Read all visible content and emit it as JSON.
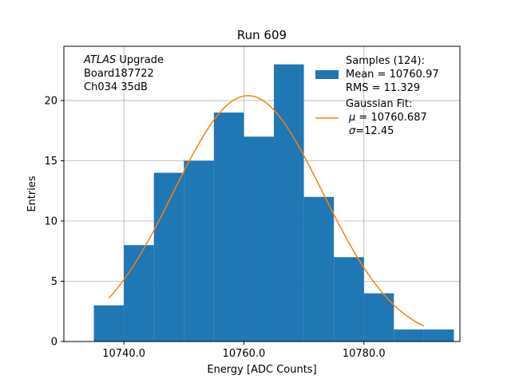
{
  "chart_data": {
    "type": "bar",
    "title": "Run 609",
    "xlabel": "Energy [ADC Counts]",
    "ylabel": "Entries",
    "xlim": [
      10730,
      10796
    ],
    "ylim": [
      0,
      24.5
    ],
    "grid": true,
    "legend_position": "top-right",
    "x_ticks": [
      10740,
      10760,
      10780
    ],
    "x_tick_labels": [
      "10740.0",
      "10760.0",
      "10780.0"
    ],
    "y_ticks": [
      0,
      5,
      10,
      15,
      20
    ],
    "y_tick_labels": [
      "0",
      "5",
      "10",
      "15",
      "20"
    ],
    "histogram": {
      "name": "Samples (124):",
      "color": "#1f77b4",
      "bin_edges": [
        10735,
        10740,
        10745,
        10750,
        10755,
        10760,
        10765,
        10770,
        10775,
        10780,
        10785,
        10790,
        10795
      ],
      "counts": [
        3,
        8,
        14,
        15,
        19,
        17,
        23,
        12,
        7,
        4,
        1,
        1
      ]
    },
    "gaussian_fit": {
      "name": "Gaussian Fit:",
      "color": "#ff7f0e",
      "amplitude": 20.4,
      "mu": 10760.687,
      "sigma": 12.45,
      "x_range": [
        10737.5,
        10790.0
      ]
    },
    "legend": {
      "samples_title": "Samples (124):",
      "samples_mean": " Mean = 10760.97",
      "samples_rms": " RMS = 11.329",
      "fit_title": "Gaussian Fit:",
      "fit_mu_symbol": "μ",
      "fit_mu_rest": " = 10760.687",
      "fit_sigma_symbol": "σ",
      "fit_sigma_rest": "=12.45"
    },
    "annotation": {
      "atlas": "ATLAS",
      "upgrade": " Upgrade",
      "board": " Board187722",
      "channel": " Ch034 35dB"
    }
  }
}
